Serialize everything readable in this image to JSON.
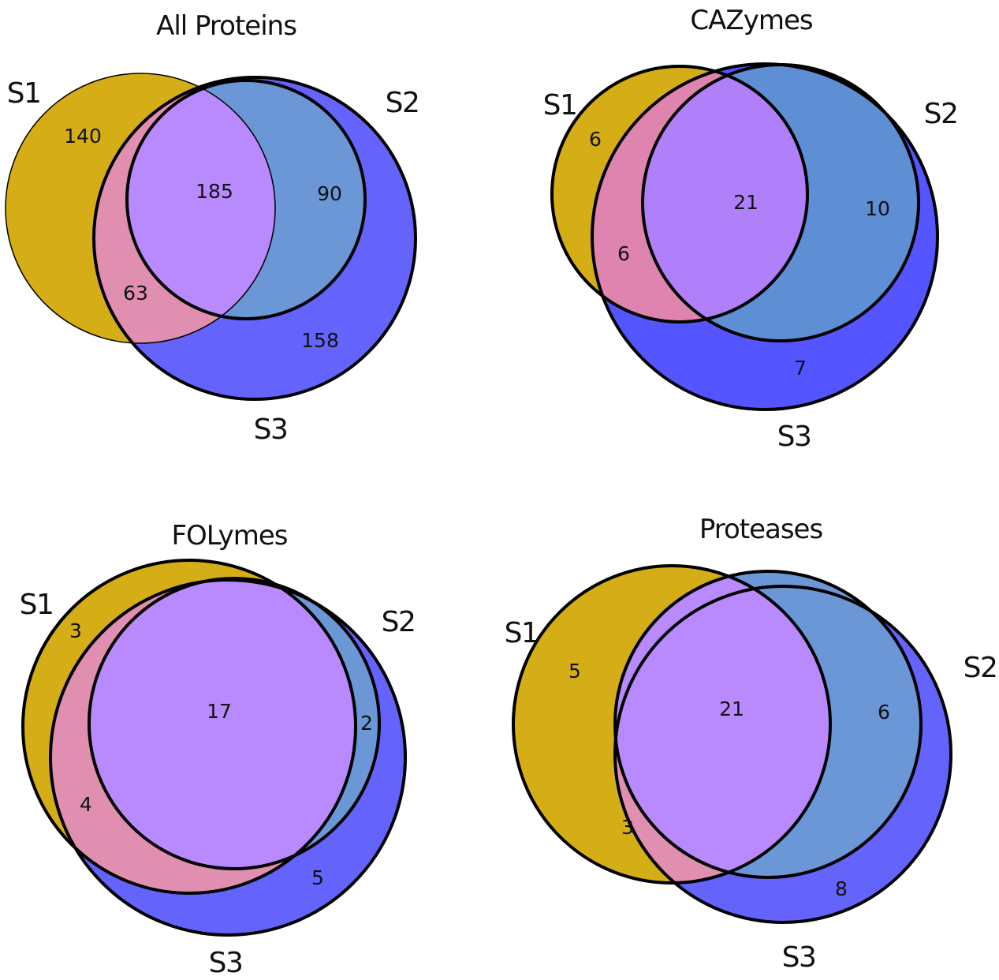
{
  "colors": {
    "s1_only": "#d5ad16",
    "s2_only": "#6b97d6",
    "s3_only": "#6464fc",
    "s1_s3": "#e08fb0",
    "s1_s2_s3": "#b98afd",
    "outline": "#000000"
  },
  "diagrams": [
    {
      "title": "All Proteins",
      "set_labels": [
        "S1",
        "S2",
        "S3"
      ],
      "counts": {
        "s1_only": "140",
        "s1_s2_s3": "185",
        "s2_s3": "90",
        "s1_s3": "63",
        "s3_only": "158"
      }
    },
    {
      "title": "CAZymes",
      "set_labels": [
        "S1",
        "S2",
        "S3"
      ],
      "counts": {
        "s1_only": "6",
        "s1_s2_s3": "21",
        "s2_s3": "10",
        "s1_s3": "6",
        "s3_only": "7"
      }
    },
    {
      "title": "FOLymes",
      "set_labels": [
        "S1",
        "S2",
        "S3"
      ],
      "counts": {
        "s1_only": "3",
        "s1_s2_s3": "17",
        "s2_s3": "2",
        "s1_s3": "4",
        "s3_only": "5"
      }
    },
    {
      "title": "Proteases",
      "set_labels": [
        "S1",
        "S2",
        "S3"
      ],
      "counts": {
        "s1_only": "5",
        "s1_s2_s3": "21",
        "s2_s3": "6",
        "s1_s3": "3",
        "s3_only": "8"
      }
    }
  ]
}
